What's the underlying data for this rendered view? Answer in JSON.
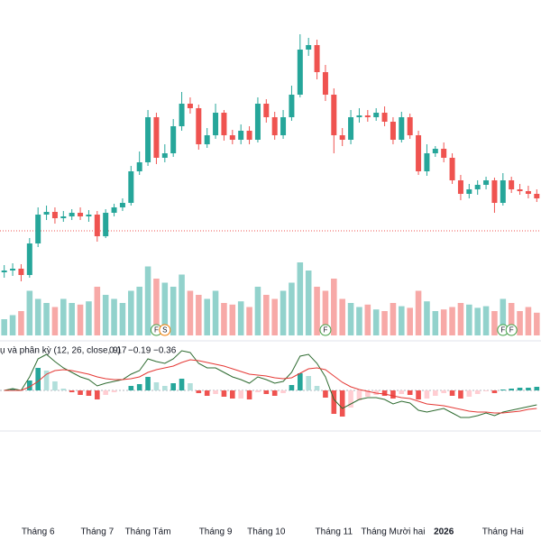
{
  "chart_data": {
    "type": "candlestick",
    "categories": [
      null,
      null,
      null,
      null,
      "Tháng 6",
      null,
      null,
      null,
      null,
      null,
      null,
      "Tháng 7",
      null,
      null,
      null,
      null,
      null,
      "Tháng Tám",
      null,
      null,
      null,
      null,
      null,
      null,
      null,
      "Tháng 9",
      null,
      null,
      null,
      null,
      null,
      "Tháng 10",
      null,
      null,
      null,
      null,
      null,
      null,
      null,
      "Tháng 11",
      null,
      null,
      null,
      null,
      null,
      null,
      "Tháng Mười hai",
      null,
      null,
      null,
      null,
      null,
      "2026",
      null,
      null,
      null,
      null,
      null,
      null,
      "Tháng Hai",
      null,
      null,
      null,
      null
    ],
    "open": [
      18,
      20,
      22,
      15,
      50,
      82,
      85,
      78,
      80,
      84,
      80,
      82,
      58,
      84,
      90,
      95,
      130,
      140,
      190,
      145,
      150,
      180,
      205,
      200,
      160,
      170,
      195,
      170,
      165,
      175,
      165,
      205,
      190,
      170,
      190,
      215,
      265,
      270,
      240,
      215,
      170,
      165,
      190,
      192,
      190,
      195,
      185,
      165,
      190,
      170,
      130,
      150,
      155,
      145,
      120,
      105,
      110,
      115,
      120,
      95,
      120,
      110,
      108,
      105
    ],
    "high": [
      26,
      28,
      27,
      56,
      90,
      92,
      90,
      86,
      88,
      90,
      87,
      86,
      88,
      94,
      100,
      136,
      152,
      198,
      195,
      160,
      188,
      218,
      212,
      204,
      178,
      205,
      198,
      176,
      182,
      180,
      212,
      210,
      196,
      198,
      225,
      282,
      278,
      276,
      248,
      222,
      178,
      198,
      200,
      198,
      200,
      202,
      190,
      196,
      194,
      175,
      160,
      158,
      162,
      150,
      126,
      116,
      120,
      124,
      123,
      128,
      124,
      116,
      114,
      110
    ],
    "low": [
      12,
      14,
      8,
      12,
      46,
      76,
      72,
      74,
      76,
      76,
      74,
      52,
      56,
      80,
      86,
      92,
      126,
      136,
      138,
      140,
      146,
      175,
      194,
      154,
      156,
      166,
      164,
      160,
      160,
      160,
      162,
      184,
      165,
      166,
      186,
      212,
      258,
      232,
      208,
      150,
      158,
      160,
      184,
      185,
      186,
      180,
      160,
      162,
      166,
      126,
      125,
      146,
      140,
      116,
      98,
      100,
      104,
      110,
      84,
      92,
      106,
      104,
      100,
      96
    ],
    "close": [
      20,
      22,
      15,
      50,
      82,
      85,
      78,
      80,
      84,
      80,
      82,
      58,
      84,
      90,
      95,
      130,
      140,
      190,
      145,
      150,
      180,
      205,
      200,
      160,
      170,
      195,
      170,
      165,
      175,
      165,
      205,
      190,
      170,
      190,
      215,
      265,
      270,
      240,
      215,
      170,
      165,
      190,
      192,
      190,
      195,
      185,
      165,
      190,
      170,
      130,
      150,
      155,
      145,
      120,
      105,
      110,
      115,
      120,
      95,
      120,
      110,
      108,
      105,
      100
    ],
    "volume": [
      20,
      25,
      30,
      55,
      45,
      40,
      35,
      45,
      40,
      38,
      42,
      60,
      50,
      45,
      40,
      55,
      60,
      85,
      70,
      65,
      60,
      75,
      55,
      50,
      45,
      55,
      40,
      38,
      42,
      35,
      60,
      50,
      45,
      55,
      65,
      90,
      80,
      60,
      55,
      70,
      45,
      40,
      35,
      38,
      32,
      30,
      40,
      36,
      34,
      55,
      42,
      30,
      32,
      35,
      40,
      38,
      34,
      36,
      30,
      45,
      40,
      30,
      35,
      28
    ],
    "macd": [
      0,
      2,
      0,
      15,
      35,
      40,
      32,
      25,
      20,
      15,
      12,
      5,
      8,
      10,
      12,
      18,
      22,
      35,
      32,
      30,
      35,
      44,
      42,
      30,
      25,
      25,
      20,
      15,
      12,
      8,
      15,
      12,
      8,
      10,
      20,
      38,
      40,
      30,
      15,
      -10,
      -20,
      -15,
      -10,
      -8,
      -8,
      -10,
      -15,
      -12,
      -14,
      -22,
      -24,
      -22,
      -20,
      -25,
      -30,
      -30,
      -28,
      -25,
      -28,
      -24,
      -22,
      -20,
      -18,
      -16
    ],
    "signal": [
      0,
      0,
      0,
      4,
      10,
      18,
      22,
      23,
      22,
      20,
      18,
      15,
      13,
      12,
      12,
      13,
      15,
      20,
      23,
      25,
      27,
      31,
      34,
      33,
      31,
      29,
      27,
      24,
      21,
      18,
      17,
      16,
      14,
      13,
      14,
      19,
      24,
      25,
      23,
      16,
      9,
      4,
      1,
      -1,
      -3,
      -4,
      -6,
      -8,
      -9,
      -12,
      -15,
      -16,
      -17,
      -19,
      -21,
      -23,
      -24,
      -24,
      -25,
      -25,
      -24,
      -23,
      -21,
      -20
    ],
    "hist": [
      0,
      2,
      0,
      11,
      25,
      22,
      10,
      2,
      -2,
      -5,
      -6,
      -10,
      -5,
      -2,
      0,
      5,
      7,
      15,
      9,
      5,
      8,
      13,
      8,
      -3,
      -6,
      -4,
      -7,
      -9,
      -9,
      -10,
      -2,
      -4,
      -6,
      -3,
      6,
      19,
      16,
      5,
      -8,
      -26,
      -29,
      -19,
      -11,
      -7,
      -5,
      -6,
      -9,
      -4,
      -5,
      -10,
      -9,
      -6,
      -3,
      -6,
      -9,
      -7,
      -4,
      -1,
      -3,
      1,
      2,
      3,
      3,
      4
    ],
    "ylim": [
      0,
      320
    ],
    "vlim": [
      0,
      100
    ],
    "mlim": [
      -50,
      50
    ],
    "price_line": 64,
    "up_color": "#26a69a",
    "down_color": "#ef5350",
    "macd_color": "#2e6b30",
    "signal_color": "#e53935",
    "markers": [
      {
        "index": 18,
        "label": "F"
      },
      {
        "index": 19,
        "label": "S"
      },
      {
        "index": 38,
        "label": "F"
      },
      {
        "index": 59,
        "label": "F"
      },
      {
        "index": 60,
        "label": "F"
      }
    ],
    "macd_legend": {
      "label": "ụ và phân kỳ (12, 26, close, 9)",
      "values": [
        {
          "value": 0.17,
          "label": "0.17"
        },
        {
          "value": -0.19,
          "label": "−0.19"
        },
        {
          "value": -0.36,
          "label": "−0.36"
        }
      ]
    }
  }
}
